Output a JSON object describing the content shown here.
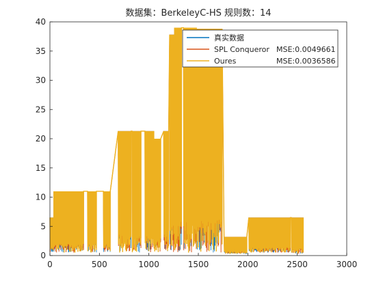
{
  "chart_data": {
    "type": "line",
    "title": "数据集：BerkeleyC-HS  规则数：14",
    "xlabel": "",
    "ylabel": "",
    "xlim": [
      0,
      3000
    ],
    "ylim": [
      0,
      40
    ],
    "xticks": [
      0,
      500,
      1000,
      1500,
      2000,
      2500,
      3000
    ],
    "yticks": [
      0,
      5,
      10,
      15,
      20,
      25,
      30,
      35,
      40
    ],
    "grid": false,
    "legend_position": "top-right",
    "colors": {
      "truth": "#0072BD",
      "spl": "#D95319",
      "ours": "#EDB120"
    },
    "series": [
      {
        "name": "真实数据",
        "mse_text": "",
        "color": "#0072BD"
      },
      {
        "name": "SPL Conqueror",
        "mse_text": "MSE:0.0049661",
        "color": "#D95319"
      },
      {
        "name": "Oures",
        "mse_text": "MSE:0.0036586",
        "color": "#EDB120"
      }
    ],
    "segments": [
      {
        "x": [
          0,
          40
        ],
        "high": 6.5,
        "low": 0.5
      },
      {
        "x": [
          40,
          340
        ],
        "high": 11.0,
        "low": 0.5
      },
      {
        "x": [
          380,
          470
        ],
        "high": 11.0,
        "low": 0.5
      },
      {
        "x": [
          540,
          610
        ],
        "high": 11.0,
        "low": 0.5
      },
      {
        "x": [
          690,
          820
        ],
        "high": 21.3,
        "low": 0.5
      },
      {
        "x": [
          830,
          920
        ],
        "high": 21.3,
        "low": 0.5
      },
      {
        "x": [
          960,
          1050
        ],
        "high": 21.3,
        "low": 0.5
      },
      {
        "x": [
          1050,
          1120
        ],
        "high": 20.0,
        "low": 0.5
      },
      {
        "x": [
          1150,
          1200
        ],
        "high": 21.3,
        "low": 0.5
      },
      {
        "x": [
          1210,
          1260
        ],
        "high": 37.8,
        "low": 0.5
      },
      {
        "x": [
          1260,
          1330
        ],
        "high": 39.0,
        "low": 0.5
      },
      {
        "x": [
          1350,
          1480
        ],
        "high": 39.0,
        "low": 0.5
      },
      {
        "x": [
          1480,
          1740
        ],
        "high": 38.8,
        "low": 0.5
      },
      {
        "x": [
          1760,
          1990
        ],
        "high": 3.2,
        "low": 0.3
      },
      {
        "x": [
          2010,
          2120
        ],
        "high": 6.5,
        "low": 0.5
      },
      {
        "x": [
          2120,
          2430
        ],
        "high": 6.5,
        "low": 0.5
      },
      {
        "x": [
          2440,
          2560
        ],
        "high": 6.5,
        "low": 0.3
      }
    ]
  }
}
